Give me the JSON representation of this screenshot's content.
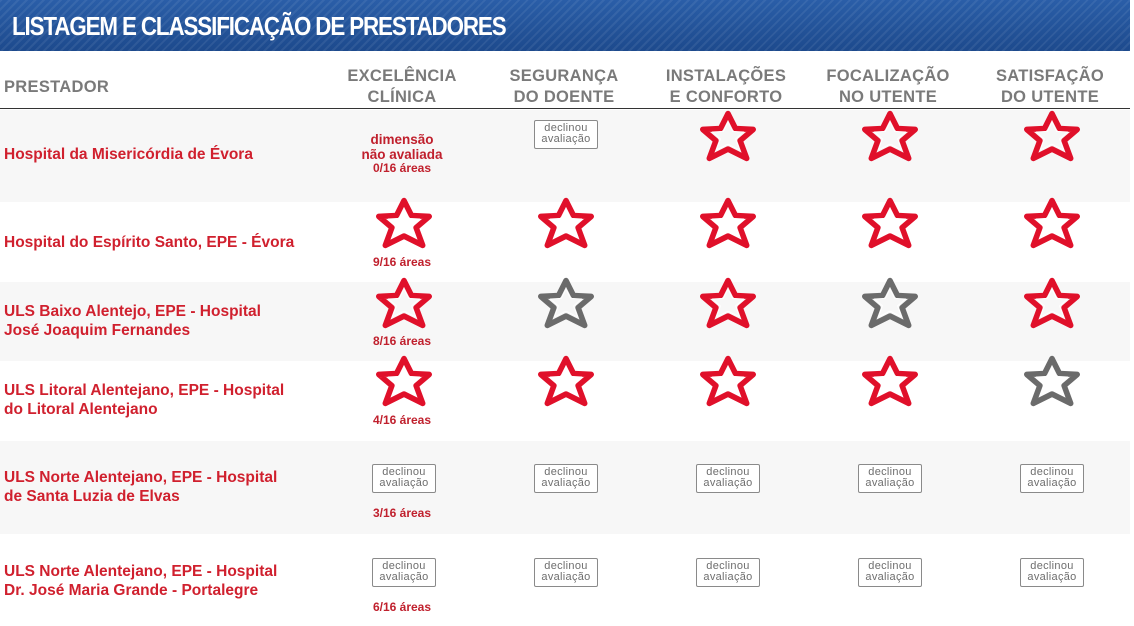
{
  "title": "LISTAGEM E CLASSIFICAÇÃO DE PRESTADORES",
  "columns": {
    "provider": "PRESTADOR",
    "dims": [
      {
        "l1": "EXCELÊNCIA",
        "l2": "CLÍNICA"
      },
      {
        "l1": "SEGURANÇA",
        "l2": "DO DOENTE"
      },
      {
        "l1": "INSTALAÇÕES",
        "l2": "E CONFORTO"
      },
      {
        "l1": "FOCALIZAÇÃO",
        "l2": "NO UTENTE"
      },
      {
        "l1": "SATISFAÇÃO",
        "l2": "DO UTENTE"
      }
    ]
  },
  "labels": {
    "declined_l1": "declinou",
    "declined_l2": "avaliação",
    "not_eval_l1": "dimensão",
    "not_eval_l2": "não avaliada"
  },
  "colors": {
    "star_red": "#e0102a",
    "star_gray": "#6b6b6b",
    "title_bar": "#1f4f95",
    "provider_text": "#d0202e"
  },
  "providers": [
    {
      "name1": "Hospital da Misericórdia de Évora",
      "name2": "",
      "areas": "0/16 áreas",
      "ratings": [
        "not-evaluated",
        "declined",
        "red",
        "red",
        "red"
      ]
    },
    {
      "name1": "Hospital do Espírito Santo, EPE - Évora",
      "name2": "",
      "areas": "9/16 áreas",
      "ratings": [
        "red",
        "red",
        "red",
        "red",
        "red"
      ]
    },
    {
      "name1": "ULS Baixo Alentejo, EPE - Hospital",
      "name2": "José Joaquim Fernandes",
      "areas": "8/16 áreas",
      "ratings": [
        "red",
        "gray",
        "red",
        "gray",
        "red"
      ]
    },
    {
      "name1": "ULS Litoral Alentejano, EPE - Hospital",
      "name2": "do Litoral Alentejano",
      "areas": "4/16 áreas",
      "ratings": [
        "red",
        "red",
        "red",
        "red",
        "gray"
      ]
    },
    {
      "name1": "ULS Norte Alentejano, EPE - Hospital",
      "name2": "de Santa Luzia de Elvas",
      "areas": "3/16 áreas",
      "ratings": [
        "declined",
        "declined",
        "declined",
        "declined",
        "declined"
      ]
    },
    {
      "name1": "ULS Norte Alentejano, EPE - Hospital",
      "name2": "Dr. José Maria Grande - Portalegre",
      "areas": "6/16 áreas",
      "ratings": [
        "declined",
        "declined",
        "declined",
        "declined",
        "declined"
      ]
    }
  ]
}
